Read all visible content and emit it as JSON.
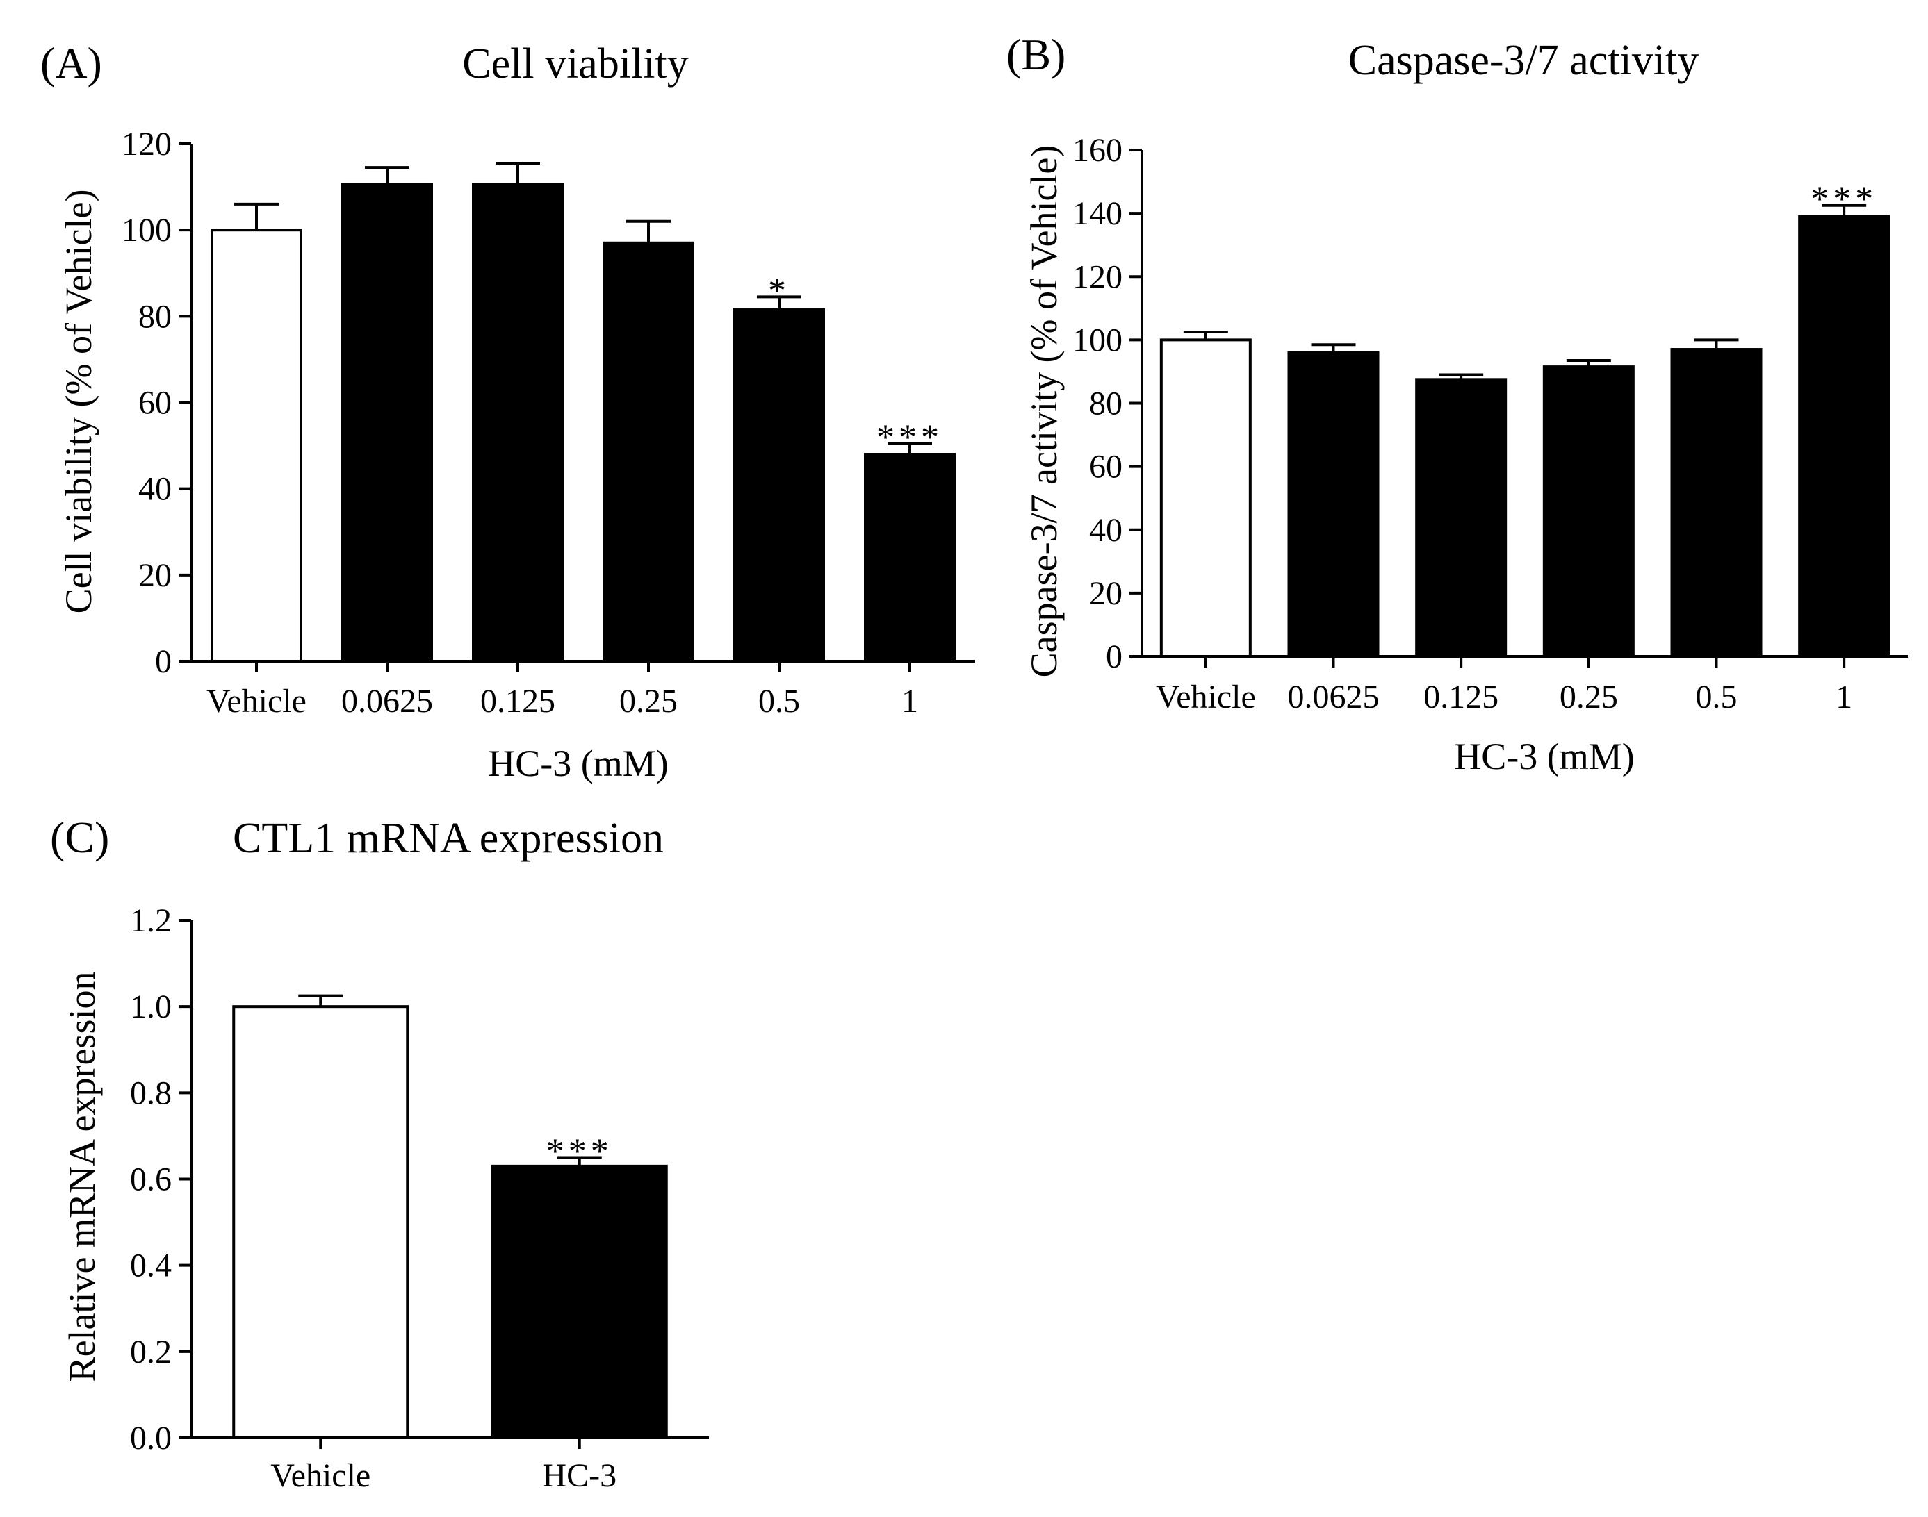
{
  "figure": {
    "panels": [
      "A",
      "B",
      "C"
    ]
  },
  "chart_data": [
    {
      "type": "bar",
      "panel_label": "(A)",
      "title": "Cell viability",
      "xlabel": "HC-3 (mM)",
      "ylabel": "Cell viability (% of Vehicle)",
      "ylim": [
        0,
        120
      ],
      "yticks": [
        0,
        20,
        40,
        60,
        80,
        100,
        120
      ],
      "ytick_labels": [
        "0",
        "20",
        "40",
        "60",
        "80",
        "100",
        "120"
      ],
      "categories": [
        "Vehicle",
        "0.0625",
        "0.125",
        "0.25",
        "0.5",
        "1"
      ],
      "values": [
        100,
        110.5,
        110.5,
        97,
        81.5,
        48
      ],
      "errors": [
        6,
        4,
        5,
        5,
        3,
        2.5
      ],
      "significance": [
        "",
        "",
        "",
        "",
        "*",
        "***"
      ],
      "fill_colors": [
        "#ffffff",
        "#000000",
        "#000000",
        "#000000",
        "#000000",
        "#000000"
      ],
      "grid": false
    },
    {
      "type": "bar",
      "panel_label": "(B)",
      "title": "Caspase-3/7 activity",
      "xlabel": "HC-3 (mM)",
      "ylabel": "Caspase-3/7 activity (% of Vehicle)",
      "ylim": [
        0,
        160
      ],
      "yticks": [
        0,
        20,
        40,
        60,
        80,
        100,
        120,
        140,
        160
      ],
      "ytick_labels": [
        "0",
        "20",
        "40",
        "60",
        "80",
        "100",
        "120",
        "140",
        "160"
      ],
      "categories": [
        "Vehicle",
        "0.0625",
        "0.125",
        "0.25",
        "0.5",
        "1"
      ],
      "values": [
        100,
        96,
        87.5,
        91.5,
        97,
        139
      ],
      "errors": [
        2.5,
        2.5,
        1.5,
        2,
        3,
        3.5
      ],
      "significance": [
        "",
        "",
        "",
        "",
        "",
        "***"
      ],
      "fill_colors": [
        "#ffffff",
        "#000000",
        "#000000",
        "#000000",
        "#000000",
        "#000000"
      ],
      "grid": false
    },
    {
      "type": "bar",
      "panel_label": "(C)",
      "title": "CTL1 mRNA expression",
      "xlabel": "",
      "ylabel": "Relative mRNA expression",
      "ylim": [
        0,
        1.2
      ],
      "yticks": [
        0,
        0.2,
        0.4,
        0.6,
        0.8,
        1.0,
        1.2
      ],
      "ytick_labels": [
        "0.0",
        "0.2",
        "0.4",
        "0.6",
        "0.8",
        "1.0",
        "1.2"
      ],
      "categories": [
        "Vehicle",
        "HC-3"
      ],
      "values": [
        1.0,
        0.63
      ],
      "errors": [
        0.025,
        0.02
      ],
      "significance": [
        "",
        "***"
      ],
      "fill_colors": [
        "#ffffff",
        "#000000"
      ],
      "grid": false
    }
  ]
}
